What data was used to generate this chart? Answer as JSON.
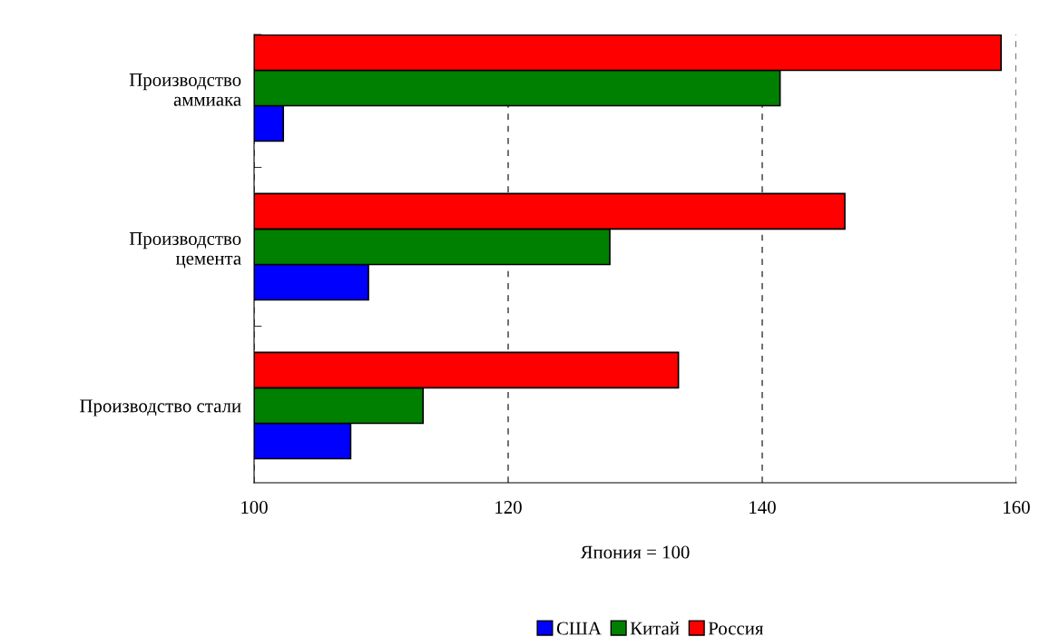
{
  "chart_data": {
    "type": "bar",
    "orientation": "horizontal",
    "xlabel": "Япония = 100",
    "categories": [
      "Производство\nаммиака",
      "Производство\nцемента",
      "Производство стали"
    ],
    "series": [
      {
        "name": "США",
        "color": "#0000ff",
        "values": [
          102.3,
          109.0,
          107.6
        ]
      },
      {
        "name": "Китай",
        "color": "#008000",
        "values": [
          141.4,
          128.0,
          113.3
        ]
      },
      {
        "name": "Россия",
        "color": "#ff0000",
        "values": [
          158.8,
          146.5,
          133.4
        ]
      }
    ],
    "xlim": [
      100,
      160
    ],
    "xticks": [
      100,
      120,
      140,
      160
    ],
    "grid": "x",
    "legend": "bottom"
  }
}
